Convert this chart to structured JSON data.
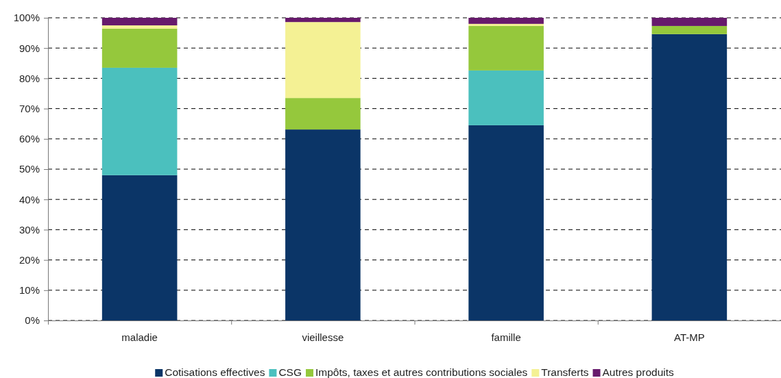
{
  "chart_data": {
    "type": "bar",
    "stacked": true,
    "categories": [
      "maladie",
      "vieillesse",
      "famille",
      "AT-MP"
    ],
    "series": [
      {
        "name": "Cotisations effectives",
        "color": "#0b3567",
        "values": [
          48.0,
          63.1,
          64.5,
          94.6
        ]
      },
      {
        "name": "CSG",
        "color": "#4bc0be",
        "values": [
          35.5,
          0,
          18.1,
          0
        ]
      },
      {
        "name": "Impôts, taxes et autres contributions sociales",
        "color": "#95c83c",
        "values": [
          12.9,
          10.4,
          14.7,
          2.7
        ]
      },
      {
        "name": "Transferts",
        "color": "#f4f194",
        "values": [
          1.1,
          25.1,
          0.7,
          0
        ]
      },
      {
        "name": "Autres produits",
        "color": "#671a6c",
        "values": [
          2.5,
          1.4,
          2.0,
          2.7
        ]
      }
    ],
    "ylim": [
      0,
      100
    ],
    "yticks": [
      {
        "value": 0,
        "label": "0%"
      },
      {
        "value": 10,
        "label": "10%"
      },
      {
        "value": 20,
        "label": "20%"
      },
      {
        "value": 30,
        "label": "30%"
      },
      {
        "value": 40,
        "label": "40%"
      },
      {
        "value": 50,
        "label": "50%"
      },
      {
        "value": 60,
        "label": "60%"
      },
      {
        "value": 70,
        "label": "70%"
      },
      {
        "value": 80,
        "label": "80%"
      },
      {
        "value": 90,
        "label": "90%"
      },
      {
        "value": 100,
        "label": "100%"
      }
    ],
    "grid": "y",
    "legend": "bottom"
  }
}
